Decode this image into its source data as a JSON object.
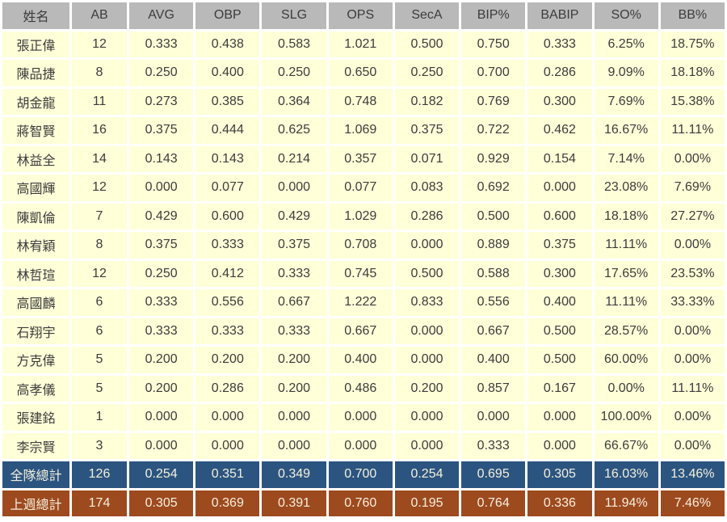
{
  "chart_data": {
    "type": "table",
    "title": "",
    "columns": [
      "姓名",
      "AB",
      "AVG",
      "OBP",
      "SLG",
      "OPS",
      "SecA",
      "BIP%",
      "BABIP",
      "SO%",
      "BB%"
    ],
    "rows": [
      {
        "name": "張正偉",
        "values": [
          "12",
          "0.333",
          "0.438",
          "0.583",
          "1.021",
          "0.500",
          "0.750",
          "0.333",
          "6.25%",
          "18.75%"
        ]
      },
      {
        "name": "陳品捷",
        "values": [
          "8",
          "0.250",
          "0.400",
          "0.250",
          "0.650",
          "0.250",
          "0.700",
          "0.286",
          "9.09%",
          "18.18%"
        ]
      },
      {
        "name": "胡金龍",
        "values": [
          "11",
          "0.273",
          "0.385",
          "0.364",
          "0.748",
          "0.182",
          "0.769",
          "0.300",
          "7.69%",
          "15.38%"
        ]
      },
      {
        "name": "蔣智賢",
        "values": [
          "16",
          "0.375",
          "0.444",
          "0.625",
          "1.069",
          "0.375",
          "0.722",
          "0.462",
          "16.67%",
          "11.11%"
        ]
      },
      {
        "name": "林益全",
        "values": [
          "14",
          "0.143",
          "0.143",
          "0.214",
          "0.357",
          "0.071",
          "0.929",
          "0.154",
          "7.14%",
          "0.00%"
        ]
      },
      {
        "name": "高國輝",
        "values": [
          "12",
          "0.000",
          "0.077",
          "0.000",
          "0.077",
          "0.083",
          "0.692",
          "0.000",
          "23.08%",
          "7.69%"
        ]
      },
      {
        "name": "陳凱倫",
        "values": [
          "7",
          "0.429",
          "0.600",
          "0.429",
          "1.029",
          "0.286",
          "0.500",
          "0.600",
          "18.18%",
          "27.27%"
        ]
      },
      {
        "name": "林宥穎",
        "values": [
          "8",
          "0.375",
          "0.333",
          "0.375",
          "0.708",
          "0.000",
          "0.889",
          "0.375",
          "11.11%",
          "0.00%"
        ]
      },
      {
        "name": "林哲瑄",
        "values": [
          "12",
          "0.250",
          "0.412",
          "0.333",
          "0.745",
          "0.500",
          "0.588",
          "0.300",
          "17.65%",
          "23.53%"
        ]
      },
      {
        "name": "高國麟",
        "values": [
          "6",
          "0.333",
          "0.556",
          "0.667",
          "1.222",
          "0.833",
          "0.556",
          "0.400",
          "11.11%",
          "33.33%"
        ]
      },
      {
        "name": "石翔宇",
        "values": [
          "6",
          "0.333",
          "0.333",
          "0.333",
          "0.667",
          "0.000",
          "0.667",
          "0.500",
          "28.57%",
          "0.00%"
        ]
      },
      {
        "name": "方克偉",
        "values": [
          "5",
          "0.200",
          "0.200",
          "0.200",
          "0.400",
          "0.000",
          "0.400",
          "0.500",
          "60.00%",
          "0.00%"
        ]
      },
      {
        "name": "高孝儀",
        "values": [
          "5",
          "0.200",
          "0.286",
          "0.200",
          "0.486",
          "0.200",
          "0.857",
          "0.167",
          "0.00%",
          "11.11%"
        ]
      },
      {
        "name": "張建銘",
        "values": [
          "1",
          "0.000",
          "0.000",
          "0.000",
          "0.000",
          "0.000",
          "0.000",
          "0.000",
          "100.00%",
          "0.00%"
        ]
      },
      {
        "name": "李宗賢",
        "values": [
          "3",
          "0.000",
          "0.000",
          "0.000",
          "0.000",
          "0.000",
          "0.333",
          "0.000",
          "66.67%",
          "0.00%"
        ]
      }
    ],
    "totals": [
      {
        "label": "全隊總計",
        "style": "team-total",
        "values": [
          "126",
          "0.254",
          "0.351",
          "0.349",
          "0.700",
          "0.254",
          "0.695",
          "0.305",
          "16.03%",
          "13.46%"
        ]
      },
      {
        "label": "上週總計",
        "style": "week-total",
        "values": [
          "174",
          "0.305",
          "0.369",
          "0.391",
          "0.760",
          "0.195",
          "0.764",
          "0.336",
          "11.94%",
          "7.46%"
        ]
      }
    ]
  },
  "colors": {
    "header_bg": "#b9b9b9",
    "row_bg": "#ffffd8",
    "team_total_bg": "#2b5580",
    "week_total_bg": "#9d4a1f",
    "grid": "#ffffff",
    "text": "#3c3c3c",
    "total_text": "#f6efdd"
  }
}
